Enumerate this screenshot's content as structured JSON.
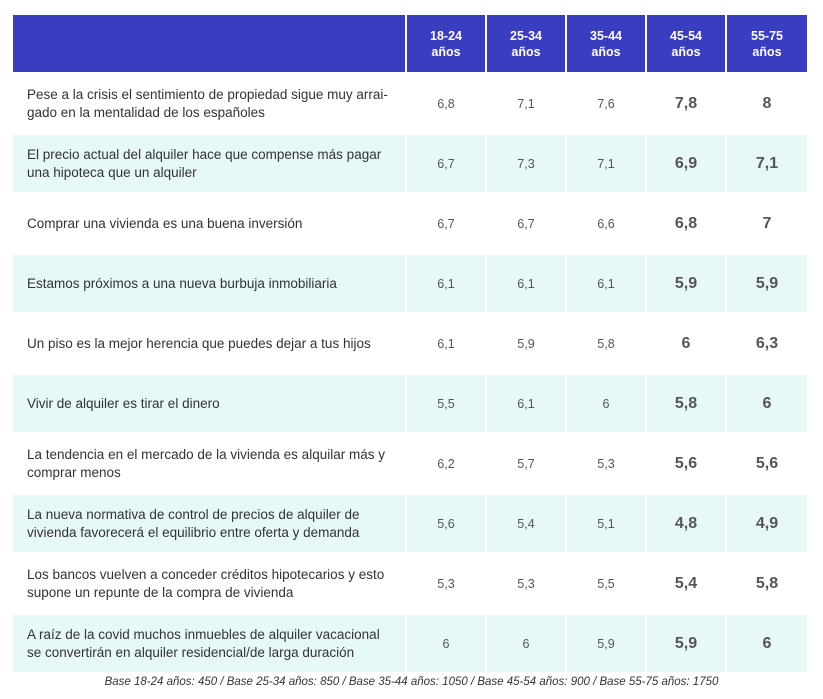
{
  "chart_data": {
    "type": "table",
    "columns": [
      "18-24\naños",
      "25-34\naños",
      "35-44\naños",
      "45-54\naños",
      "55-75\naños"
    ],
    "rows": [
      {
        "label": "Pese a la crisis el sentimiento de propiedad sigue muy arrai-\ngado en la mentalidad de los españoles",
        "values": [
          "6,8",
          "7,1",
          "7,6",
          "7,8",
          "8"
        ]
      },
      {
        "label": "El precio actual del alquiler hace que compense más pagar\nuna hipoteca que un alquiler",
        "values": [
          "6,7",
          "7,3",
          "7,1",
          "6,9",
          "7,1"
        ]
      },
      {
        "label": "Comprar una vivienda es una buena inversión",
        "values": [
          "6,7",
          "6,7",
          "6,6",
          "6,8",
          "7"
        ]
      },
      {
        "label": "Estamos próximos a una nueva burbuja inmobiliaria",
        "values": [
          "6,1",
          "6,1",
          "6,1",
          "5,9",
          "5,9"
        ]
      },
      {
        "label": "Un piso es la mejor herencia que puedes dejar a tus hijos",
        "values": [
          "6,1",
          "5,9",
          "5,8",
          "6",
          "6,3"
        ]
      },
      {
        "label": "Vivir de alquiler es tirar el dinero",
        "values": [
          "5,5",
          "6,1",
          "6",
          "5,8",
          "6"
        ]
      },
      {
        "label": "La tendencia en el mercado de la vivienda es alquilar más y\ncomprar menos",
        "values": [
          "6,2",
          "5,7",
          "5,3",
          "5,6",
          "5,6"
        ]
      },
      {
        "label": "La nueva normativa de control de precios de alquiler de\nvivienda favorecerá el equilibrio entre oferta y demanda",
        "values": [
          "5,6",
          "5,4",
          "5,1",
          "4,8",
          "4,9"
        ]
      },
      {
        "label": "Los bancos vuelven a conceder créditos hipotecarios y esto\nsupone un repunte de la compra de vivienda",
        "values": [
          "5,3",
          "5,3",
          "5,5",
          "5,4",
          "5,8"
        ]
      },
      {
        "label": "A raíz de la covid muchos inmuebles de alquiler vacacional\nse convertirán en alquiler residencial/de larga duración",
        "values": [
          "6",
          "6",
          "5,9",
          "5,9",
          "6"
        ]
      }
    ],
    "footnote": "Base 18-24 años: 450 / Base 25-34 años: 850 / Base 35-44 años: 1050 / Base 45-54 años: 900 / Base 55-75 años: 1750",
    "colors": {
      "header": "#3b3dc0",
      "stripe": "#e6f8f8"
    }
  }
}
